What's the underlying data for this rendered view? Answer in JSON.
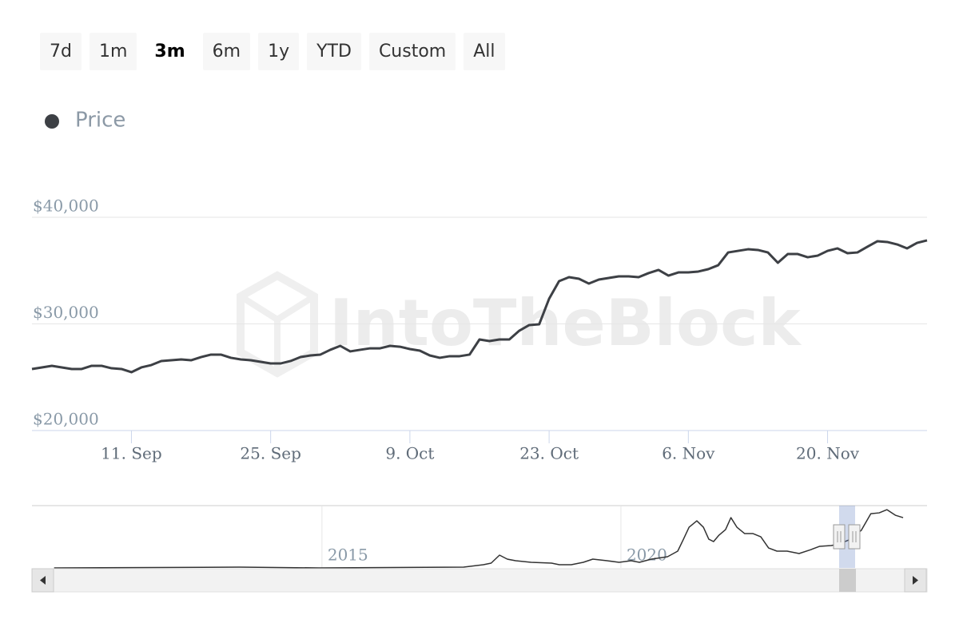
{
  "range_buttons": [
    "7d",
    "1m",
    "3m",
    "6m",
    "1y",
    "YTD",
    "Custom",
    "All"
  ],
  "chart_data": [
    {
      "type": "line",
      "watermark": "IntoTheBlock",
      "categories": [
        null,
        null,
        null,
        null,
        null,
        null,
        null,
        null,
        null,
        null,
        "11. Sep",
        null,
        null,
        null,
        null,
        null,
        null,
        null,
        null,
        null,
        null,
        null,
        null,
        null,
        "25. Sep",
        null,
        null,
        null,
        null,
        null,
        null,
        null,
        null,
        null,
        null,
        null,
        null,
        null,
        "9. Oct",
        null,
        null,
        null,
        null,
        null,
        null,
        null,
        null,
        null,
        null,
        null,
        null,
        null,
        "23. Oct",
        null,
        null,
        null,
        null,
        null,
        null,
        null,
        null,
        null,
        null,
        null,
        null,
        null,
        "6. Nov",
        null,
        null,
        null,
        null,
        null,
        null,
        null,
        null,
        null,
        null,
        null,
        null,
        null,
        "20. Nov",
        null,
        null,
        null,
        null,
        null,
        null,
        null,
        null,
        null,
        null
      ],
      "series": [
        {
          "name": "Price",
          "color": "#3d4045",
          "values": [
            25770,
            25920,
            26070,
            25920,
            25770,
            25770,
            26070,
            26070,
            25840,
            25770,
            25470,
            25920,
            26140,
            26520,
            26590,
            26670,
            26590,
            26890,
            27120,
            27120,
            26820,
            26670,
            26590,
            26440,
            26290,
            26290,
            26520,
            26890,
            27040,
            27120,
            27570,
            27940,
            27420,
            27570,
            27710,
            27710,
            27940,
            27860,
            27640,
            27490,
            27040,
            26820,
            26970,
            26970,
            27120,
            28540,
            28390,
            28540,
            28540,
            29360,
            29890,
            29960,
            32360,
            34010,
            34380,
            34230,
            33780,
            34160,
            34310,
            34460,
            34460,
            34380,
            34760,
            35060,
            34530,
            34830,
            34830,
            34910,
            35130,
            35500,
            36700,
            36850,
            37000,
            36930,
            36700,
            35730,
            36550,
            36550,
            36250,
            36400,
            36850,
            37080,
            36630,
            36700,
            37230,
            37750,
            37680,
            37450,
            37080,
            37600,
            37830
          ]
        }
      ],
      "ylim": [
        20000,
        40000
      ],
      "yticks": [
        {
          "value": 20000,
          "label": "$20,000"
        },
        {
          "value": 30000,
          "label": "$30,000"
        },
        {
          "value": 40000,
          "label": "$40,000"
        }
      ],
      "grid": true
    },
    {
      "type": "line",
      "x": [
        2010.52,
        2013.62,
        2014.96,
        2017.37,
        2017.7,
        2017.83,
        2017.97,
        2018.1,
        2018.24,
        2018.37,
        2018.5,
        2018.84,
        2018.97,
        2019.17,
        2019.37,
        2019.53,
        2019.77,
        2019.97,
        2020.17,
        2020.31,
        2020.51,
        2020.78,
        2020.95,
        2021.04,
        2021.14,
        2021.27,
        2021.38,
        2021.47,
        2021.55,
        2021.64,
        2021.75,
        2021.84,
        2021.94,
        2022.07,
        2022.21,
        2022.34,
        2022.47,
        2022.61,
        2022.78,
        2022.98,
        2023.18,
        2023.32,
        2023.52,
        2023.65,
        2023.81,
        2024.02,
        2024.18,
        2024.32,
        2024.45,
        2024.59,
        2024.72
      ],
      "series": [
        {
          "color": "#333333",
          "values": [
            0,
            540,
            0,
            540,
            2150,
            3230,
            8610,
            5920,
            4840,
            4300,
            3770,
            3230,
            2150,
            2150,
            3770,
            5920,
            4840,
            3770,
            4840,
            3770,
            5920,
            7530,
            11300,
            18830,
            27440,
            31740,
            27440,
            19370,
            17750,
            22060,
            25820,
            33890,
            27440,
            23130,
            23130,
            20980,
            13450,
            11300,
            11300,
            9680,
            12370,
            14530,
            15060,
            16140,
            18830,
            25290,
            36580,
            37120,
            39270,
            35510,
            33890
          ]
        }
      ],
      "xlim": [
        2010.15,
        2025.12
      ],
      "xticks": [
        2015,
        2020
      ],
      "ylim": [
        0,
        42000
      ],
      "grid": true
    }
  ]
}
